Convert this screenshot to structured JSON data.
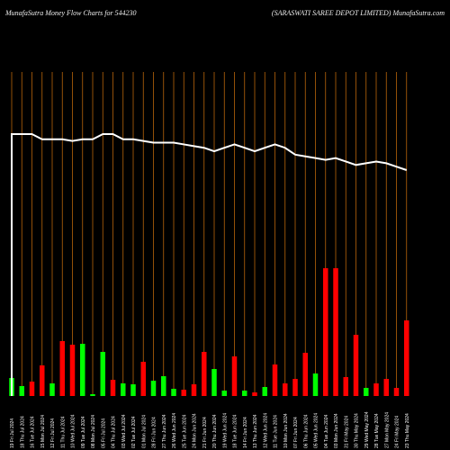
{
  "header": {
    "left": "MunafaSutra  Money Flow  Charts for 544230",
    "right": "(SARASWATI SAREE DEPOT LIMITED) MunafaSutra.com"
  },
  "colors": {
    "background": "#000000",
    "grid": "#b8650a",
    "up": "#00ff00",
    "down": "#ff0000",
    "line": "#ffffff"
  },
  "chart_data": {
    "type": "bar",
    "categories": [
      "19 Fri Jul 2024",
      "18 Thu Jul 2024",
      "16 Tue Jul 2024",
      "15 Mon Jul 2024",
      "12 Fri Jul 2024",
      "11 Thu Jul 2024",
      "10 Wed Jul 2024",
      "09 Tue Jul 2024",
      "08 Mon Jul 2024",
      "05 Fri Jul 2024",
      "04 Thu Jul 2024",
      "03 Wed Jul 2024",
      "02 Tue Jul 2024",
      "01 Mon Jul 2024",
      "28 Fri Jun 2024",
      "27 Thu Jun 2024",
      "26 Wed Jun 2024",
      "25 Tue Jun 2024",
      "24 Mon Jun 2024",
      "21 Fri Jun 2024",
      "20 Thu Jun 2024",
      "19 Wed Jun 2024",
      "18 Tue Jun 2024",
      "14 Fri Jun 2024",
      "13 Thu Jun 2024",
      "12 Wed Jun 2024",
      "11 Tue Jun 2024",
      "10 Mon Jun 2024",
      "07 Fri Jun 2024",
      "06 Thu Jun 2024",
      "05 Wed Jun 2024",
      "04 Tue Jun 2024",
      "03 Mon Jun 2024",
      "31 Fri May 2024",
      "30 Thu May 2024",
      "29 Wed May 2024",
      "28 Tue May 2024",
      "27 Mon May 2024",
      "24 Fri May 2024",
      "23 Thu May 2024"
    ],
    "series": [
      {
        "colors": [
          "up",
          "up",
          "down",
          "down",
          "up",
          "down",
          "down",
          "up",
          "up",
          "up",
          "down",
          "up",
          "up",
          "down",
          "up",
          "up",
          "up",
          "down",
          "down",
          "down",
          "up",
          "up",
          "down",
          "up",
          "down",
          "up",
          "down",
          "down",
          "down",
          "down",
          "up",
          "down",
          "down",
          "down",
          "down",
          "up",
          "down",
          "down",
          "down",
          "down"
        ],
        "values": [
          20,
          11,
          16,
          34,
          14,
          61,
          57,
          58,
          2,
          49,
          18,
          14,
          13,
          38,
          17,
          22,
          8,
          7,
          13,
          49,
          30,
          6,
          44,
          6,
          4,
          10,
          35,
          14,
          19,
          48,
          25,
          142,
          142,
          21,
          68,
          9,
          14,
          19,
          9,
          84
        ]
      },
      {
        "type": "line",
        "values": [
          100,
          100,
          100,
          97,
          97,
          97,
          96,
          97,
          97,
          100,
          100,
          97,
          97,
          96,
          95,
          95,
          95,
          94,
          93,
          92,
          90,
          92,
          94,
          92,
          90,
          92,
          94,
          92,
          88,
          87,
          86,
          85,
          86,
          84,
          82,
          83,
          84,
          83,
          81,
          79
        ]
      }
    ],
    "xlabel": "",
    "ylabel": ""
  }
}
